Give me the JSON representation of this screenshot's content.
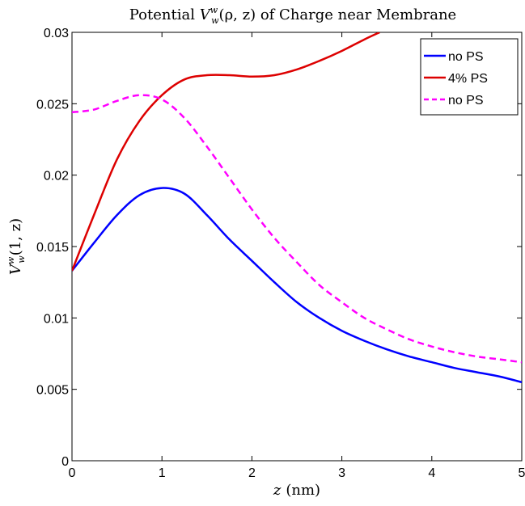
{
  "chart_data": {
    "type": "line",
    "title": "Potential V_w^w(ρ, z) of Charge near Membrane",
    "title_parts": {
      "prefix": "Potential ",
      "V": "V",
      "sup": "w",
      "sub": "w",
      "suffix": "(ρ, z) of Charge near Membrane"
    },
    "xlabel": "z (nm)",
    "xlabel_parts": {
      "var": "z",
      "unit": "(nm)"
    },
    "ylabel": "V_w^w(1, z)",
    "ylabel_parts": {
      "V": "V",
      "sup": "w",
      "sub": "w",
      "args": "(1, z)"
    },
    "xlim": [
      0,
      5
    ],
    "ylim": [
      0,
      0.03
    ],
    "xticks": [
      0,
      1,
      2,
      3,
      4,
      5
    ],
    "xtick_labels": [
      "0",
      "1",
      "2",
      "3",
      "4",
      "5"
    ],
    "yticks": [
      0,
      0.005,
      0.01,
      0.015,
      0.02,
      0.025,
      0.03
    ],
    "ytick_labels": [
      "0",
      "0.005",
      "0.01",
      "0.015",
      "0.02",
      "0.025",
      "0.03"
    ],
    "grid": false,
    "legend_position": "top-right",
    "series": [
      {
        "name": "no PS",
        "color": "#0000ff",
        "style": "solid",
        "x": [
          0,
          0.25,
          0.5,
          0.75,
          1.0,
          1.25,
          1.5,
          1.75,
          2.0,
          2.25,
          2.5,
          2.75,
          3.0,
          3.25,
          3.5,
          3.75,
          4.0,
          4.25,
          4.5,
          4.75,
          5.0
        ],
        "y": [
          0.0133,
          0.0153,
          0.0172,
          0.0186,
          0.0191,
          0.0187,
          0.0172,
          0.0155,
          0.014,
          0.0125,
          0.0111,
          0.01,
          0.0091,
          0.0084,
          0.0078,
          0.0073,
          0.0069,
          0.0065,
          0.0062,
          0.0059,
          0.0055
        ]
      },
      {
        "name": "4% PS",
        "color": "#dd0000",
        "style": "solid",
        "x": [
          0,
          0.25,
          0.5,
          0.75,
          1.0,
          1.25,
          1.5,
          1.75,
          2.0,
          2.25,
          2.5,
          2.75,
          3.0,
          3.25,
          3.42
        ],
        "y": [
          0.0133,
          0.0173,
          0.0211,
          0.0238,
          0.0256,
          0.0267,
          0.027,
          0.027,
          0.0269,
          0.027,
          0.0274,
          0.028,
          0.0287,
          0.0295,
          0.03
        ]
      },
      {
        "name": "no PS",
        "color": "#ff00ff",
        "style": "dashed",
        "x": [
          0,
          0.25,
          0.5,
          0.75,
          1.0,
          1.25,
          1.5,
          1.75,
          2.0,
          2.25,
          2.5,
          2.75,
          3.0,
          3.25,
          3.5,
          3.75,
          4.0,
          4.25,
          4.5,
          4.75,
          5.0
        ],
        "y": [
          0.0244,
          0.0246,
          0.0252,
          0.0256,
          0.0253,
          0.024,
          0.022,
          0.0198,
          0.0176,
          0.0156,
          0.0139,
          0.0123,
          0.0111,
          0.01,
          0.0092,
          0.0085,
          0.008,
          0.0076,
          0.0073,
          0.0071,
          0.0069
        ]
      }
    ]
  }
}
